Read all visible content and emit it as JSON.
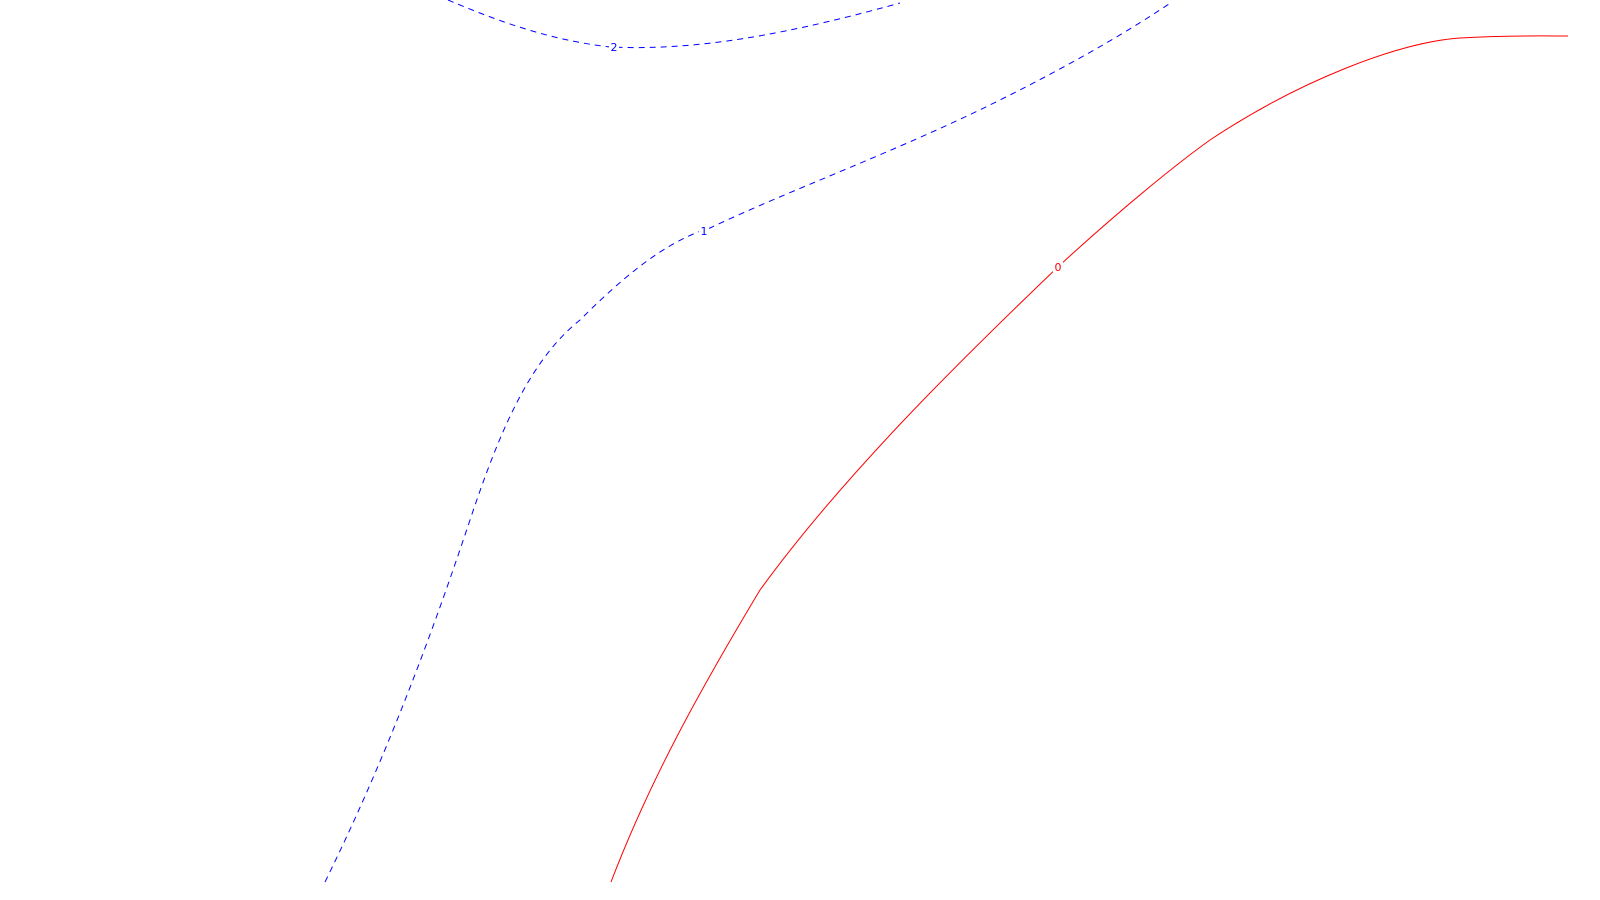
{
  "chart_data": {
    "type": "contour",
    "title": "",
    "xlabel": "",
    "ylabel": "",
    "grid": false,
    "legend": "none",
    "contours": [
      {
        "level": 2,
        "label": "2",
        "color": "#0000ff",
        "style": "dashed"
      },
      {
        "level": 1,
        "label": "1",
        "color": "#0000ff",
        "style": "dashed"
      },
      {
        "level": 0,
        "label": "0",
        "color": "#ff0000",
        "style": "solid"
      }
    ]
  }
}
